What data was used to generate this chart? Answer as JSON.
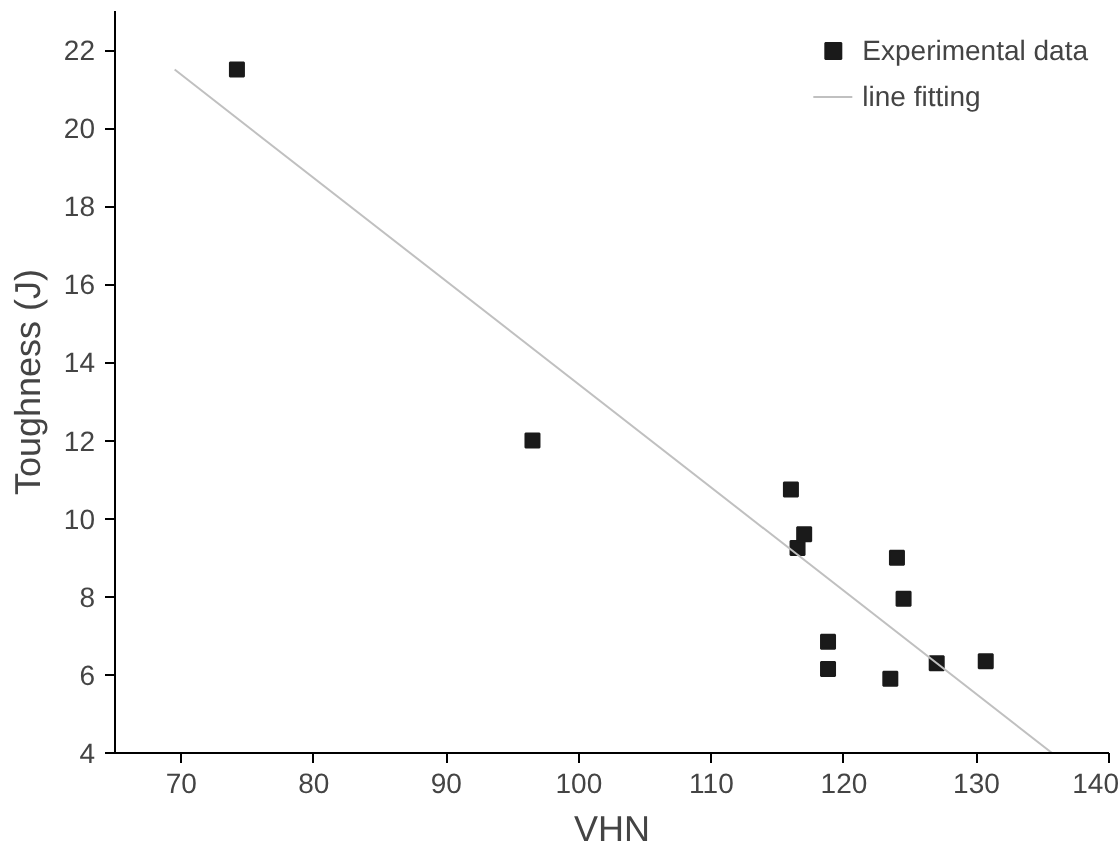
{
  "chart_data": {
    "type": "scatter",
    "xlabel": "VHN",
    "ylabel": "Toughness (J)",
    "xlim": [
      65,
      140
    ],
    "xticks": [
      70,
      80,
      90,
      100,
      110,
      120,
      130,
      140
    ],
    "ylim": [
      4,
      23
    ],
    "yticks": [
      4,
      6,
      8,
      10,
      12,
      14,
      16,
      18,
      20,
      22
    ],
    "legend": "top right",
    "grid": false,
    "marker": "square",
    "series": [
      {
        "name": "Experimental data",
        "color": "#1a1a1a",
        "x": [
          74.2,
          96.5,
          116,
          116.5,
          117,
          118.8,
          118.8,
          123.5,
          124,
          124.5,
          127,
          130.7
        ],
        "values": [
          21.5,
          12.0,
          10.75,
          9.25,
          9.6,
          6.85,
          6.15,
          5.9,
          9.0,
          7.95,
          6.3,
          6.35
        ]
      },
      {
        "name": "line fitting",
        "type": "line",
        "color": "#c0c0c0",
        "marker": "none",
        "x": [
          69.5,
          135.7
        ],
        "values": [
          21.5,
          4.0
        ]
      }
    ]
  }
}
